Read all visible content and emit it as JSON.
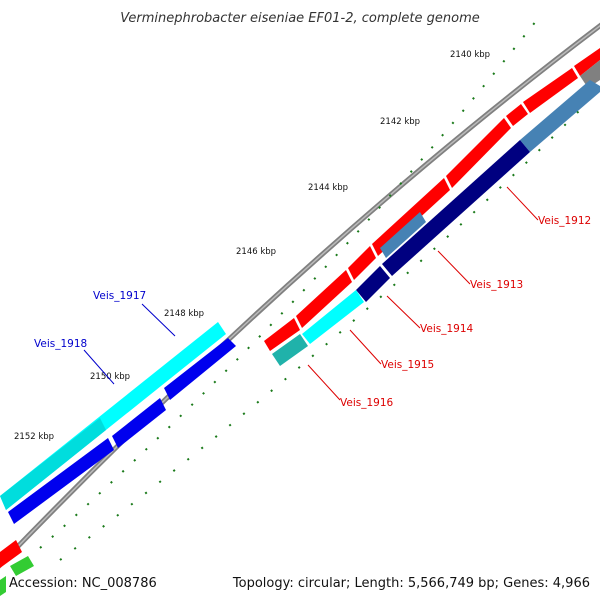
{
  "title": "Verminephrobacter eiseniae EF01-2, complete genome",
  "accession": "Accession: NC_008786",
  "summary": "Topology: circular; Length: 5,566,749 bp; Genes: 4,966",
  "colors": {
    "forward_cds": "#ff0000",
    "reverse_cds": "#0000ee",
    "cyan_cds": "#00ffff",
    "teal_cds": "#20b2aa",
    "navy_cds": "#000080",
    "steelblue_cds": "#4682b4",
    "gray_feature": "#808080",
    "green_feature": "#33cc33",
    "backbone": "#808080",
    "tick": "#1a7a1a",
    "label_red": "#dd0000",
    "label_blue": "#0000cc"
  },
  "ticks": [
    "2140 kbp",
    "2142 kbp",
    "2144 kbp",
    "2146 kbp",
    "2148 kbp",
    "2150 kbp",
    "2152 kbp"
  ],
  "gene_labels": {
    "red": [
      "Veis_1912",
      "Veis_1913",
      "Veis_1914",
      "Veis_1915",
      "Veis_1916"
    ],
    "blue": [
      "Veis_1917",
      "Veis_1918"
    ]
  }
}
